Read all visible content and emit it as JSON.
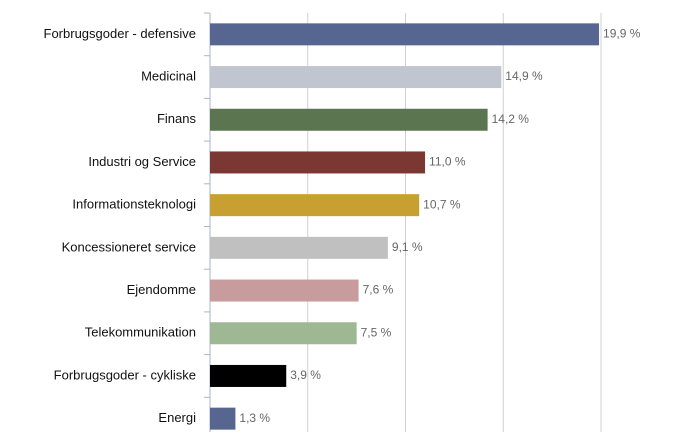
{
  "chart_data": {
    "type": "barh",
    "categories": [
      "Forbrugsgoder - defensive",
      "Medicinal",
      "Finans",
      "Industri og Service",
      "Informationsteknologi",
      "Koncessioneret service",
      "Ejendomme",
      "Telekommunikation",
      "Forbrugsgoder - cykliske",
      "Energi"
    ],
    "values": [
      19.9,
      14.9,
      14.2,
      11.0,
      10.7,
      9.1,
      7.6,
      7.5,
      3.9,
      1.3
    ],
    "value_labels": [
      "19,9 %",
      "14,9 %",
      "14,2 %",
      "11,0 %",
      "10,7 %",
      "9,1 %",
      "7,6 %",
      "7,5 %",
      "3,9 %",
      "1,3 %"
    ],
    "colors": [
      "#566690",
      "#c0c5d0",
      "#5b7550",
      "#7b3832",
      "#c8a031",
      "#c0c0c0",
      "#c89c9c",
      "#9fb894",
      "#000000",
      "#566690"
    ],
    "xlim": [
      0,
      20
    ],
    "xticks": [
      0,
      5,
      10,
      15,
      20
    ],
    "grid": true
  }
}
